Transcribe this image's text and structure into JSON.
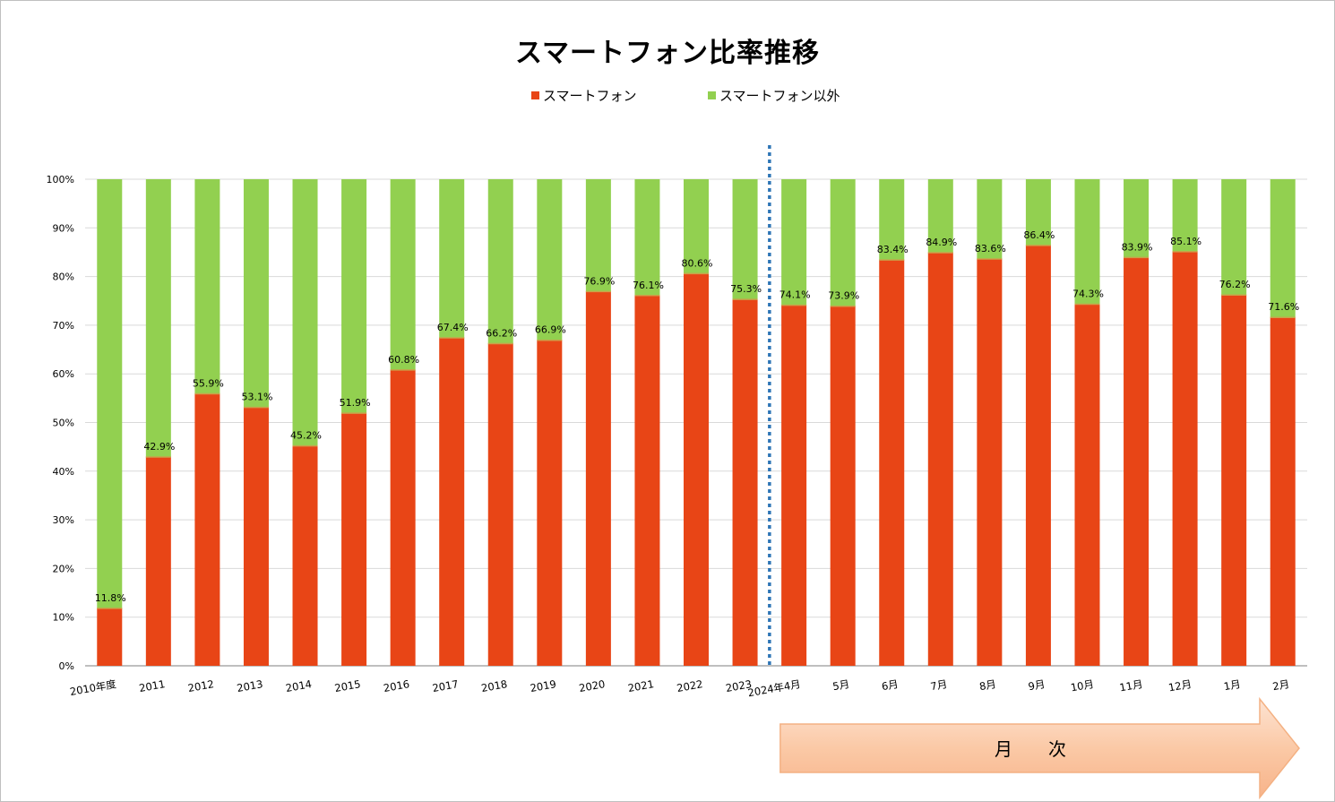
{
  "chart_data": {
    "type": "bar",
    "stacked": true,
    "percent_stacked": true,
    "title": "スマートフォン比率推移",
    "categories": [
      "2010年度",
      "2011",
      "2012",
      "2013",
      "2014",
      "2015",
      "2016",
      "2017",
      "2018",
      "2019",
      "2020",
      "2021",
      "2022",
      "2023",
      "2024年4月",
      "5月",
      "6月",
      "7月",
      "8月",
      "9月",
      "10月",
      "11月",
      "12月",
      "1月",
      "2月"
    ],
    "series": [
      {
        "name": "スマートフォン",
        "color": "#e84516",
        "values": [
          11.8,
          42.9,
          55.9,
          53.1,
          45.2,
          51.9,
          60.8,
          67.4,
          66.2,
          66.9,
          76.9,
          76.1,
          80.6,
          75.3,
          74.1,
          73.9,
          83.4,
          84.9,
          83.6,
          86.4,
          74.3,
          83.9,
          85.1,
          76.2,
          71.6
        ]
      },
      {
        "name": "スマートフォン以外",
        "color": "#92d050",
        "values": [
          88.2,
          57.1,
          44.1,
          46.9,
          54.8,
          48.1,
          39.2,
          32.6,
          33.8,
          33.1,
          23.1,
          23.9,
          19.4,
          24.7,
          25.9,
          26.1,
          16.6,
          15.1,
          16.4,
          13.6,
          25.7,
          16.1,
          14.9,
          23.8,
          28.4
        ]
      }
    ],
    "data_labels": [
      "11.8%",
      "42.9%",
      "55.9%",
      "53.1%",
      "45.2%",
      "51.9%",
      "60.8%",
      "67.4%",
      "66.2%",
      "66.9%",
      "76.9%",
      "76.1%",
      "80.6%",
      "75.3%",
      "74.1%",
      "73.9%",
      "83.4%",
      "84.9%",
      "83.6%",
      "86.4%",
      "74.3%",
      "83.9%",
      "85.1%",
      "76.2%",
      "71.6%"
    ],
    "yticks": [
      "0%",
      "10%",
      "20%",
      "30%",
      "40%",
      "50%",
      "60%",
      "70%",
      "80%",
      "90%",
      "100%"
    ],
    "ylim": [
      0,
      100
    ],
    "grid": true,
    "legend_position": "top",
    "divider_after_category": "2023",
    "annotation_arrow_label": "月　　次"
  }
}
